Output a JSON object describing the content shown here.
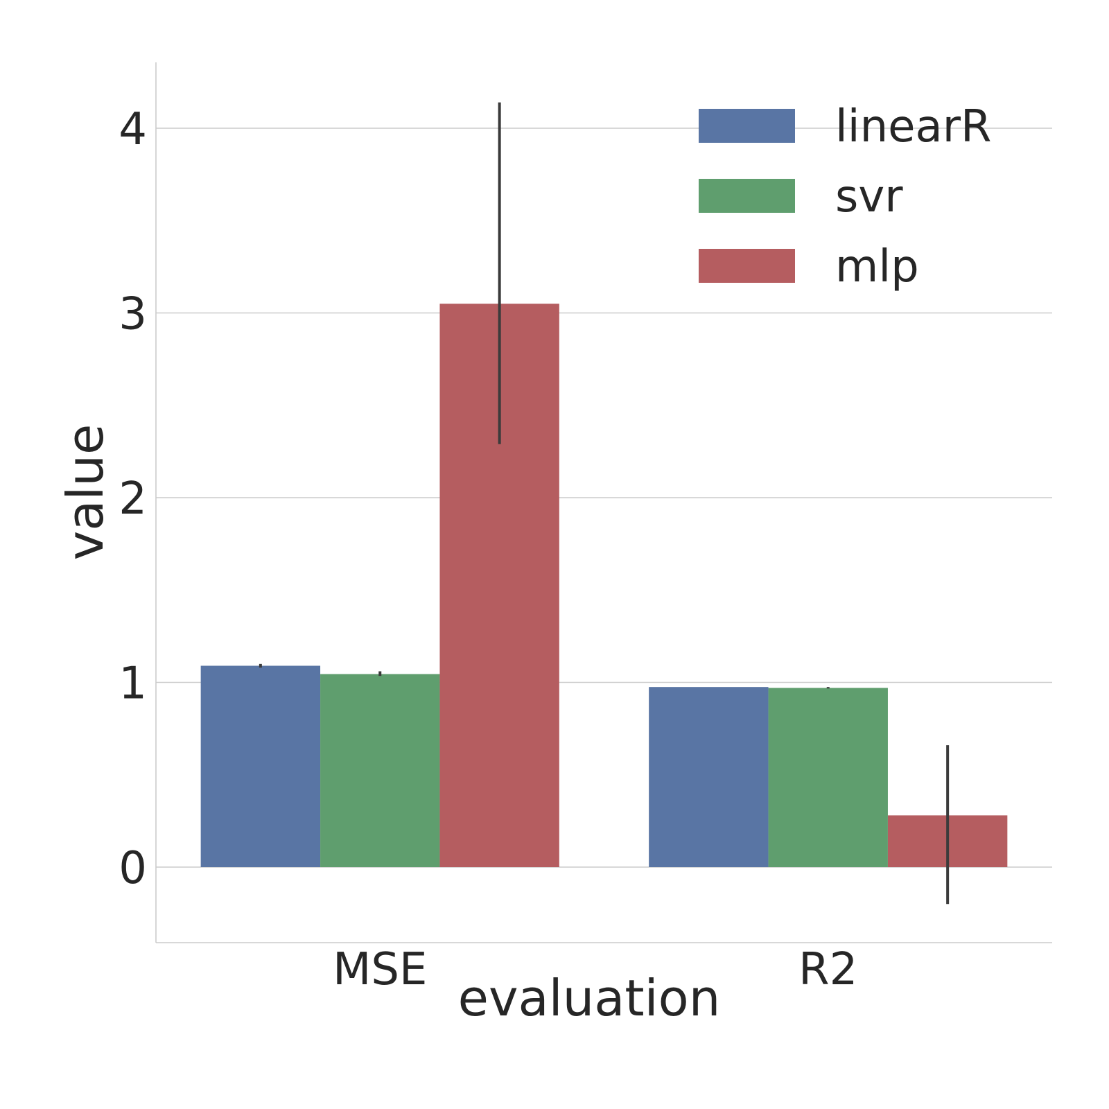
{
  "chart_data": {
    "type": "bar",
    "title": "",
    "xlabel": "evaluation",
    "ylabel": "value",
    "categories": [
      "MSE",
      "R2"
    ],
    "yticks": [
      0,
      1,
      2,
      3,
      4
    ],
    "ylim": [
      -0.41,
      4.36
    ],
    "grid": "horizontal",
    "legend_position": "top-right",
    "series": [
      {
        "name": "linearR",
        "color": "#5975a4",
        "values": [
          1.09,
          0.975
        ],
        "err_low": [
          1.08,
          0.975
        ],
        "err_high": [
          1.1,
          0.975
        ]
      },
      {
        "name": "svr",
        "color": "#5f9e6e",
        "values": [
          1.045,
          0.97
        ],
        "err_low": [
          1.035,
          0.967
        ],
        "err_high": [
          1.06,
          0.975
        ]
      },
      {
        "name": "mlp",
        "color": "#b55d60",
        "values": [
          3.05,
          0.28
        ],
        "err_low": [
          2.29,
          -0.2
        ],
        "err_high": [
          4.14,
          0.66
        ]
      }
    ]
  }
}
